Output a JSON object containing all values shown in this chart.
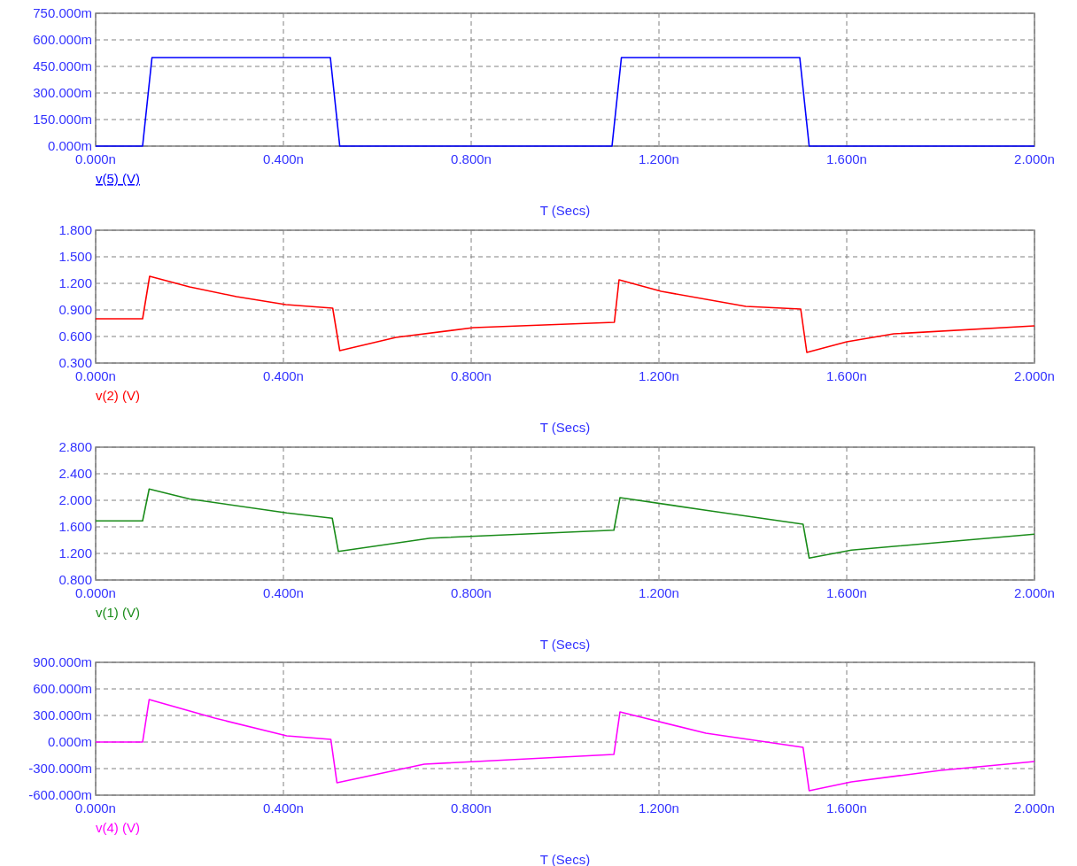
{
  "chart_data": [
    {
      "type": "line",
      "xlabel": "T (Secs)",
      "xlim": [
        0,
        2
      ],
      "xticks": [
        {
          "value": 0,
          "label": "0.000n"
        },
        {
          "value": 0.4,
          "label": "0.400n"
        },
        {
          "value": 0.8,
          "label": "0.800n"
        },
        {
          "value": 1.2,
          "label": "1.200n"
        },
        {
          "value": 1.6,
          "label": "1.600n"
        },
        {
          "value": 2,
          "label": "2.000n"
        }
      ],
      "ylim": [
        0,
        750
      ],
      "yticks": [
        {
          "value": 0,
          "label": "0.000m"
        },
        {
          "value": 150,
          "label": "150.000m"
        },
        {
          "value": 300,
          "label": "300.000m"
        },
        {
          "value": 450,
          "label": "450.000m"
        },
        {
          "value": 600,
          "label": "600.000m"
        },
        {
          "value": 750,
          "label": "750.000m"
        }
      ],
      "grid": true,
      "series": [
        {
          "name": "v(5) (V)",
          "color": "#0000ff",
          "x": [
            0,
            0.1,
            0.11,
            0.12,
            0.5,
            0.51,
            0.52,
            1.1,
            1.11,
            1.12,
            1.5,
            1.51,
            1.52,
            2
          ],
          "values": [
            0,
            0,
            250,
            500,
            500,
            250,
            0,
            0,
            250,
            500,
            500,
            250,
            0,
            0
          ]
        }
      ]
    },
    {
      "type": "line",
      "xlabel": "T (Secs)",
      "xlim": [
        0,
        2
      ],
      "xticks": [
        {
          "value": 0,
          "label": "0.000n"
        },
        {
          "value": 0.4,
          "label": "0.400n"
        },
        {
          "value": 0.8,
          "label": "0.800n"
        },
        {
          "value": 1.2,
          "label": "1.200n"
        },
        {
          "value": 1.6,
          "label": "1.600n"
        },
        {
          "value": 2,
          "label": "2.000n"
        }
      ],
      "ylim": [
        0.3,
        1.8
      ],
      "yticks": [
        {
          "value": 0.3,
          "label": "0.300"
        },
        {
          "value": 0.6,
          "label": "0.600"
        },
        {
          "value": 0.9,
          "label": "0.900"
        },
        {
          "value": 1.2,
          "label": "1.200"
        },
        {
          "value": 1.5,
          "label": "1.500"
        },
        {
          "value": 1.8,
          "label": "1.800"
        }
      ],
      "grid": true,
      "series": [
        {
          "name": "v(2) (V)",
          "color": "#ff0000",
          "x": [
            0,
            0.1,
            0.115,
            0.2,
            0.3,
            0.405,
            0.505,
            0.52,
            0.64,
            0.805,
            1.105,
            1.115,
            1.205,
            1.385,
            1.502,
            1.515,
            1.6,
            1.7,
            2
          ],
          "values": [
            0.8,
            0.8,
            1.28,
            1.16,
            1.05,
            0.96,
            0.92,
            0.44,
            0.59,
            0.7,
            0.76,
            1.24,
            1.11,
            0.94,
            0.91,
            0.42,
            0.54,
            0.63,
            0.72
          ]
        }
      ]
    },
    {
      "type": "line",
      "xlabel": "T (Secs)",
      "xlim": [
        0,
        2
      ],
      "xticks": [
        {
          "value": 0,
          "label": "0.000n"
        },
        {
          "value": 0.4,
          "label": "0.400n"
        },
        {
          "value": 0.8,
          "label": "0.800n"
        },
        {
          "value": 1.2,
          "label": "1.200n"
        },
        {
          "value": 1.6,
          "label": "1.600n"
        },
        {
          "value": 2,
          "label": "2.000n"
        }
      ],
      "ylim": [
        0.8,
        2.8
      ],
      "yticks": [
        {
          "value": 0.8,
          "label": "0.800"
        },
        {
          "value": 1.2,
          "label": "1.200"
        },
        {
          "value": 1.6,
          "label": "1.600"
        },
        {
          "value": 2,
          "label": "2.000"
        },
        {
          "value": 2.4,
          "label": "2.400"
        },
        {
          "value": 2.8,
          "label": "2.800"
        }
      ],
      "grid": true,
      "series": [
        {
          "name": "v(1) (V)",
          "color": "#1a8c1a",
          "x": [
            0,
            0.1,
            0.114,
            0.2,
            0.407,
            0.504,
            0.517,
            0.713,
            1.104,
            1.117,
            1.3,
            1.507,
            1.52,
            1.61,
            2
          ],
          "values": [
            1.69,
            1.69,
            2.17,
            2.02,
            1.81,
            1.73,
            1.23,
            1.43,
            1.55,
            2.04,
            1.85,
            1.64,
            1.13,
            1.25,
            1.49
          ]
        }
      ]
    },
    {
      "type": "line",
      "xlabel": "T (Secs)",
      "xlim": [
        0,
        2
      ],
      "xticks": [
        {
          "value": 0,
          "label": "0.000n"
        },
        {
          "value": 0.4,
          "label": "0.400n"
        },
        {
          "value": 0.8,
          "label": "0.800n"
        },
        {
          "value": 1.2,
          "label": "1.200n"
        },
        {
          "value": 1.6,
          "label": "1.600n"
        },
        {
          "value": 2,
          "label": "2.000n"
        }
      ],
      "ylim": [
        -600,
        900
      ],
      "yticks": [
        {
          "value": -600,
          "label": "-600.000m"
        },
        {
          "value": -300,
          "label": "-300.000m"
        },
        {
          "value": 0,
          "label": "0.000m"
        },
        {
          "value": 300,
          "label": "300.000m"
        },
        {
          "value": 600,
          "label": "600.000m"
        },
        {
          "value": 900,
          "label": "900.000m"
        }
      ],
      "grid": true,
      "series": [
        {
          "name": "v(4) (V)",
          "color": "#ff00ff",
          "x": [
            0,
            0.1,
            0.114,
            0.254,
            0.407,
            0.501,
            0.514,
            0.7,
            1.104,
            1.117,
            1.3,
            1.507,
            1.52,
            1.61,
            1.8,
            2
          ],
          "values": [
            0,
            0,
            480,
            270,
            70,
            30,
            -460,
            -250,
            -140,
            340,
            100,
            -60,
            -550,
            -450,
            -320,
            -220
          ]
        }
      ]
    }
  ]
}
